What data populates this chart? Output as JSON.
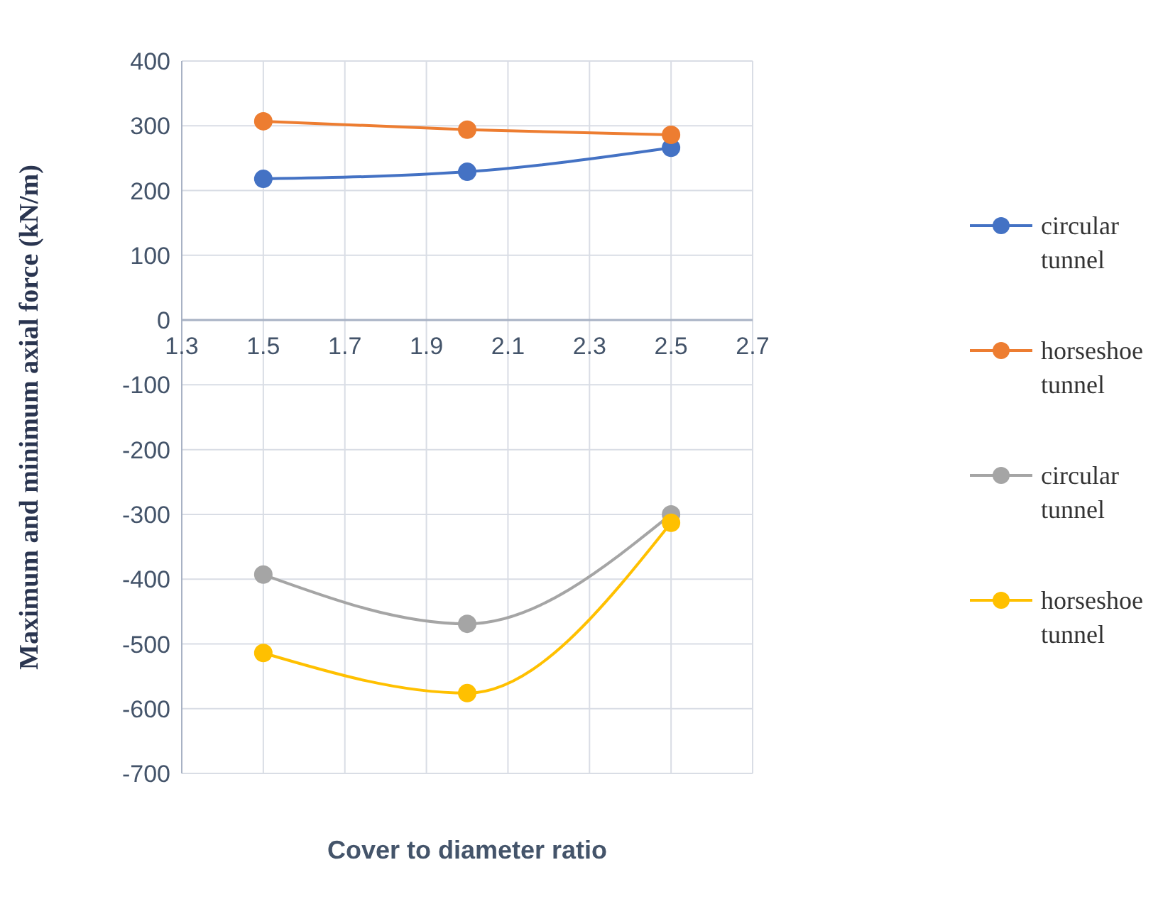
{
  "chart_data": {
    "type": "line",
    "xlabel": "Cover to diameter ratio",
    "ylabel": "Maximum and minimum axial force (kN/m)",
    "x": [
      1.5,
      2.0,
      2.5
    ],
    "series": [
      {
        "name": "circular tunnel",
        "color": "#4472c4",
        "values": [
          218,
          229,
          266
        ]
      },
      {
        "name": "horseshoe tunnel",
        "color": "#ed7d31",
        "values": [
          307,
          294,
          286
        ]
      },
      {
        "name": "circular tunnel",
        "color": "#a5a5a5",
        "values": [
          -393,
          -469,
          -300
        ]
      },
      {
        "name": "horseshoe tunnel",
        "color": "#ffc000",
        "values": [
          -514,
          -576,
          -313
        ]
      }
    ],
    "xlim": [
      1.3,
      2.7
    ],
    "xticks": [
      1.3,
      1.5,
      1.7,
      1.9,
      2.1,
      2.3,
      2.5,
      2.7
    ],
    "ylim": [
      -700,
      400
    ],
    "yticks": [
      -700,
      -600,
      -500,
      -400,
      -300,
      -200,
      -100,
      0,
      100,
      200,
      300,
      400
    ],
    "grid": true,
    "legend": "right",
    "marker": "circle",
    "line_style": "solid"
  }
}
